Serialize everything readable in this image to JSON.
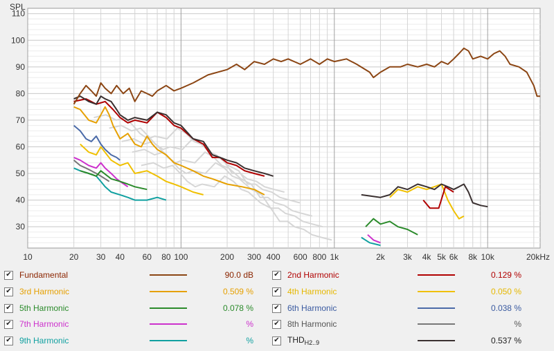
{
  "chart_data": {
    "type": "line",
    "title": "",
    "xlabel": "",
    "ylabel": "SPL",
    "x_unit_label": "20kHz",
    "x_scale": "log",
    "xlim": [
      10,
      22000
    ],
    "ylim": [
      22,
      112
    ],
    "grid": true,
    "legend_position": "bottom",
    "y_ticks": [
      30,
      40,
      50,
      60,
      70,
      80,
      90,
      100,
      110
    ],
    "x_ticks": [
      {
        "value": 10,
        "label": "10"
      },
      {
        "value": 20,
        "label": "20"
      },
      {
        "value": 30,
        "label": "30"
      },
      {
        "value": 40,
        "label": "40"
      },
      {
        "value": 60,
        "label": "60"
      },
      {
        "value": 80,
        "label": "80"
      },
      {
        "value": 100,
        "label": "100"
      },
      {
        "value": 200,
        "label": "200"
      },
      {
        "value": 300,
        "label": "300"
      },
      {
        "value": 400,
        "label": "400"
      },
      {
        "value": 600,
        "label": "600"
      },
      {
        "value": 800,
        "label": "800"
      },
      {
        "value": 1000,
        "label": "1k"
      },
      {
        "value": 2000,
        "label": "2k"
      },
      {
        "value": 3000,
        "label": "3k"
      },
      {
        "value": 4000,
        "label": "4k"
      },
      {
        "value": 5000,
        "label": "5k"
      },
      {
        "value": 6000,
        "label": "6k"
      },
      {
        "value": 8000,
        "label": "8k"
      },
      {
        "value": 10000,
        "label": "10k"
      }
    ],
    "series": [
      {
        "key": "fundamental",
        "name": "Fundamental",
        "color": "#8b4513",
        "points": [
          [
            20,
            76
          ],
          [
            22,
            80
          ],
          [
            24,
            83
          ],
          [
            26,
            81
          ],
          [
            28,
            79
          ],
          [
            30,
            84
          ],
          [
            32,
            82
          ],
          [
            35,
            80
          ],
          [
            38,
            83
          ],
          [
            42,
            80
          ],
          [
            46,
            82
          ],
          [
            50,
            77
          ],
          [
            55,
            81
          ],
          [
            60,
            80
          ],
          [
            65,
            79
          ],
          [
            70,
            81
          ],
          [
            80,
            83
          ],
          [
            90,
            81
          ],
          [
            100,
            82
          ],
          [
            120,
            84
          ],
          [
            150,
            87
          ],
          [
            200,
            89
          ],
          [
            230,
            91
          ],
          [
            260,
            89
          ],
          [
            300,
            92
          ],
          [
            350,
            91
          ],
          [
            400,
            93
          ],
          [
            450,
            92
          ],
          [
            500,
            93
          ],
          [
            600,
            91
          ],
          [
            700,
            93
          ],
          [
            800,
            91
          ],
          [
            900,
            93
          ],
          [
            1000,
            92
          ],
          [
            1200,
            93
          ],
          [
            1400,
            91
          ],
          [
            1700,
            88
          ],
          [
            1800,
            86
          ],
          [
            2000,
            88
          ],
          [
            2300,
            90
          ],
          [
            2700,
            90
          ],
          [
            3000,
            91
          ],
          [
            3500,
            90
          ],
          [
            4000,
            91
          ],
          [
            4500,
            90
          ],
          [
            5000,
            92
          ],
          [
            5500,
            91
          ],
          [
            6000,
            93
          ],
          [
            6500,
            95
          ],
          [
            7000,
            97
          ],
          [
            7500,
            96
          ],
          [
            8000,
            93
          ],
          [
            9000,
            94
          ],
          [
            10000,
            93
          ],
          [
            11000,
            95
          ],
          [
            12000,
            96
          ],
          [
            13000,
            94
          ],
          [
            14000,
            91
          ],
          [
            16000,
            90
          ],
          [
            18000,
            88
          ],
          [
            20000,
            83
          ],
          [
            21000,
            79
          ],
          [
            22000,
            79
          ]
        ]
      },
      {
        "key": "h2",
        "name": "2nd Harmonic",
        "color": "#b00000",
        "points": [
          [
            20,
            77
          ],
          [
            24,
            78
          ],
          [
            28,
            76
          ],
          [
            32,
            77
          ],
          [
            36,
            74
          ],
          [
            40,
            71
          ],
          [
            45,
            69
          ],
          [
            50,
            70
          ],
          [
            60,
            69
          ],
          [
            70,
            73
          ],
          [
            80,
            71
          ],
          [
            90,
            68
          ],
          [
            100,
            67
          ],
          [
            120,
            63
          ],
          [
            140,
            61
          ],
          [
            160,
            56
          ],
          [
            180,
            56
          ],
          [
            200,
            54
          ],
          [
            230,
            53
          ],
          [
            260,
            51
          ],
          [
            300,
            50
          ],
          [
            350,
            49
          ],
          [
            3800,
            40
          ],
          [
            4200,
            37
          ],
          [
            4800,
            37
          ],
          [
            5300,
            45
          ],
          [
            6000,
            43
          ]
        ]
      },
      {
        "key": "h3",
        "name": "3rd Harmonic",
        "color": "#e6a000",
        "points": [
          [
            20,
            75
          ],
          [
            22,
            74
          ],
          [
            25,
            70
          ],
          [
            28,
            69
          ],
          [
            30,
            72
          ],
          [
            32,
            75
          ],
          [
            34,
            72
          ],
          [
            36,
            68
          ],
          [
            40,
            63
          ],
          [
            45,
            65
          ],
          [
            50,
            61
          ],
          [
            55,
            60
          ],
          [
            60,
            64
          ],
          [
            65,
            61
          ],
          [
            70,
            59
          ],
          [
            80,
            57
          ],
          [
            90,
            54
          ],
          [
            100,
            53
          ],
          [
            120,
            51
          ],
          [
            140,
            49
          ],
          [
            160,
            48
          ],
          [
            200,
            46
          ],
          [
            250,
            45
          ],
          [
            300,
            44
          ],
          [
            350,
            42
          ]
        ]
      },
      {
        "key": "h4",
        "name": "4th Harmonic",
        "color": "#f0c000",
        "points": [
          [
            22,
            61
          ],
          [
            25,
            58
          ],
          [
            28,
            57
          ],
          [
            30,
            60
          ],
          [
            35,
            55
          ],
          [
            40,
            53
          ],
          [
            45,
            54
          ],
          [
            50,
            50
          ],
          [
            60,
            51
          ],
          [
            70,
            49
          ],
          [
            80,
            47
          ],
          [
            90,
            46
          ],
          [
            100,
            45
          ],
          [
            120,
            43
          ],
          [
            140,
            42
          ],
          [
            2300,
            41
          ],
          [
            2600,
            44
          ],
          [
            3000,
            43
          ],
          [
            3500,
            45
          ],
          [
            4000,
            44
          ],
          [
            5000,
            46
          ],
          [
            5500,
            40
          ],
          [
            6000,
            36
          ],
          [
            6500,
            33
          ],
          [
            7000,
            34
          ]
        ]
      },
      {
        "key": "h5",
        "name": "5th Harmonic",
        "color": "#2a8a2a",
        "points": [
          [
            22,
            51
          ],
          [
            25,
            50
          ],
          [
            28,
            49
          ],
          [
            30,
            51
          ],
          [
            35,
            48
          ],
          [
            40,
            47
          ],
          [
            45,
            46
          ],
          [
            50,
            45
          ],
          [
            60,
            44
          ],
          [
            1600,
            30
          ],
          [
            1800,
            33
          ],
          [
            2000,
            31
          ],
          [
            2300,
            32
          ],
          [
            2600,
            30
          ],
          [
            3000,
            29
          ],
          [
            3500,
            27
          ]
        ]
      },
      {
        "key": "h6",
        "name": "6th Harmonic",
        "color": "#4a6aa8",
        "points": [
          [
            20,
            68
          ],
          [
            22,
            66
          ],
          [
            24,
            63
          ],
          [
            26,
            62
          ],
          [
            28,
            64
          ],
          [
            30,
            61
          ],
          [
            32,
            59
          ],
          [
            35,
            57
          ],
          [
            38,
            56
          ],
          [
            40,
            55
          ]
        ]
      },
      {
        "key": "h7",
        "name": "7th Harmonic",
        "color": "#cc30cc",
        "points": [
          [
            20,
            56
          ],
          [
            22,
            55
          ],
          [
            25,
            53
          ],
          [
            28,
            52
          ],
          [
            30,
            54
          ],
          [
            32,
            52
          ],
          [
            35,
            50
          ],
          [
            38,
            48
          ],
          [
            40,
            47
          ],
          [
            45,
            45
          ],
          [
            1650,
            27
          ],
          [
            1800,
            25
          ],
          [
            2000,
            24
          ]
        ]
      },
      {
        "key": "h8",
        "name": "8th Harmonic",
        "color": "#777777",
        "points": [
          [
            20,
            55
          ],
          [
            22,
            53
          ],
          [
            24,
            52
          ],
          [
            26,
            51
          ],
          [
            28,
            50
          ],
          [
            30,
            49
          ],
          [
            32,
            48
          ],
          [
            34,
            47
          ]
        ]
      },
      {
        "key": "h9",
        "name": "9th Harmonic",
        "color": "#10a0a0",
        "points": [
          [
            20,
            52
          ],
          [
            22,
            51
          ],
          [
            25,
            50
          ],
          [
            28,
            49
          ],
          [
            30,
            47
          ],
          [
            32,
            45
          ],
          [
            35,
            43
          ],
          [
            40,
            42
          ],
          [
            45,
            41
          ],
          [
            50,
            40
          ],
          [
            60,
            40
          ],
          [
            70,
            41
          ],
          [
            80,
            40
          ],
          [
            1500,
            26
          ],
          [
            1700,
            24
          ],
          [
            2000,
            23
          ]
        ]
      },
      {
        "key": "thd",
        "name": "THD",
        "color": "#3a3030",
        "points": [
          [
            20,
            78
          ],
          [
            22,
            79
          ],
          [
            25,
            77
          ],
          [
            28,
            76
          ],
          [
            30,
            79
          ],
          [
            32,
            78
          ],
          [
            35,
            77
          ],
          [
            38,
            74
          ],
          [
            40,
            72
          ],
          [
            45,
            70
          ],
          [
            50,
            71
          ],
          [
            60,
            70
          ],
          [
            70,
            73
          ],
          [
            80,
            72
          ],
          [
            90,
            69
          ],
          [
            100,
            68
          ],
          [
            120,
            63
          ],
          [
            140,
            62
          ],
          [
            160,
            57
          ],
          [
            180,
            56
          ],
          [
            200,
            55
          ],
          [
            230,
            54
          ],
          [
            260,
            52
          ],
          [
            300,
            51
          ],
          [
            350,
            50
          ],
          [
            400,
            49
          ],
          [
            1500,
            42
          ],
          [
            2000,
            41
          ],
          [
            2300,
            42
          ],
          [
            2600,
            45
          ],
          [
            3000,
            44
          ],
          [
            3500,
            46
          ],
          [
            4000,
            45
          ],
          [
            4500,
            44
          ],
          [
            5000,
            46
          ],
          [
            5500,
            45
          ],
          [
            6000,
            44
          ],
          [
            6500,
            45
          ],
          [
            7000,
            46
          ],
          [
            7500,
            43
          ],
          [
            8000,
            39
          ],
          [
            9000,
            38
          ],
          [
            10000,
            37.5
          ]
        ]
      }
    ],
    "background_traces_color": "#d6d6d6"
  },
  "legend": {
    "items": [
      {
        "label": "Fundamental",
        "label_color": "#8b2500",
        "swatch": "#8b4513",
        "value": "90.0 dB",
        "value_color": "#8b2500"
      },
      {
        "label": "2nd Harmonic",
        "label_color": "#b00000",
        "swatch": "#b00000",
        "value": "0.129 %",
        "value_color": "#b00000"
      },
      {
        "label": "3rd Harmonic",
        "label_color": "#e6a000",
        "swatch": "#e6a000",
        "value": "0.509 %",
        "value_color": "#e6a000"
      },
      {
        "label": "4th Harmonic",
        "label_color": "#e6b800",
        "swatch": "#f0c000",
        "value": "0.050 %",
        "value_color": "#e6b800"
      },
      {
        "label": "5th Harmonic",
        "label_color": "#2a8a2a",
        "swatch": "#2a8a2a",
        "value": "0.078 %",
        "value_color": "#2a8a2a"
      },
      {
        "label": "6th Harmonic",
        "label_color": "#3a5aa0",
        "swatch": "#4a6aa8",
        "value": "0.038 %",
        "value_color": "#3a5aa0"
      },
      {
        "label": "7th Harmonic",
        "label_color": "#cc30cc",
        "swatch": "#cc30cc",
        "value": "%",
        "value_color": "#cc30cc"
      },
      {
        "label": "8th Harmonic",
        "label_color": "#555555",
        "swatch": "#777777",
        "value": "%",
        "value_color": "#555555"
      },
      {
        "label": "9th Harmonic",
        "label_color": "#10a0a0",
        "swatch": "#10a0a0",
        "value": "%",
        "value_color": "#10a0a0"
      },
      {
        "label": "THD",
        "label_sub": "H2..9",
        "label_color": "#222222",
        "swatch": "#3a3030",
        "value": "0.537 %",
        "value_color": "#222222"
      }
    ],
    "check_glyph": "✔"
  }
}
